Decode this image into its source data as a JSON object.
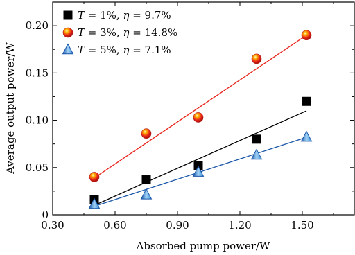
{
  "chart_data": {
    "type": "scatter",
    "xlabel": "Absorbed pump power/W",
    "ylabel": "Average output power/W",
    "xlim": [
      0.3,
      1.75
    ],
    "ylim": [
      0,
      0.225
    ],
    "xticks": [
      0.3,
      0.6,
      0.9,
      1.2,
      1.5
    ],
    "xtick_labels": [
      "0.30",
      "0.60",
      "0.90",
      "1.20",
      "1.50"
    ],
    "yticks": [
      0,
      0.05,
      0.1,
      0.15,
      0.2
    ],
    "ytick_labels": [
      "0",
      "0.05",
      "0.10",
      "0.15",
      "0.20"
    ],
    "legend_position": "top-left",
    "series": [
      {
        "name": "T = 1%, η = 9.7%",
        "marker": "square",
        "color": "#000000",
        "line_color": "#000000",
        "x": [
          0.5,
          0.75,
          1.0,
          1.28,
          1.52
        ],
        "y": [
          0.016,
          0.037,
          0.052,
          0.08,
          0.12
        ],
        "fit": [
          [
            0.5,
            0.01
          ],
          [
            1.52,
            0.11
          ]
        ]
      },
      {
        "name": "T = 3%, η = 14.8%",
        "marker": "sphere",
        "color": "#e8231a",
        "line_color": "#e8231a",
        "x": [
          0.5,
          0.75,
          1.0,
          1.28,
          1.52
        ],
        "y": [
          0.04,
          0.086,
          0.103,
          0.165,
          0.19
        ],
        "fit": [
          [
            0.5,
            0.039
          ],
          [
            1.52,
            0.19
          ]
        ]
      },
      {
        "name": "T = 5%, η = 7.1%",
        "marker": "triangle",
        "color": "#5aa6e0",
        "line_color": "#1a56a8",
        "x": [
          0.5,
          0.75,
          1.0,
          1.28,
          1.52
        ],
        "y": [
          0.011,
          0.021,
          0.045,
          0.063,
          0.082
        ],
        "fit": [
          [
            0.5,
            0.009
          ],
          [
            1.52,
            0.082
          ]
        ]
      }
    ],
    "legend": [
      {
        "prefix": "T",
        "rest": " = 1%, ",
        "eta": "η",
        "eta_rest": " = 9.7%"
      },
      {
        "prefix": "T",
        "rest": " = 3%, ",
        "eta": "η",
        "eta_rest": " = 14.8%"
      },
      {
        "prefix": "T",
        "rest": " = 5%, ",
        "eta": "η",
        "eta_rest": " = 7.1%"
      }
    ]
  }
}
